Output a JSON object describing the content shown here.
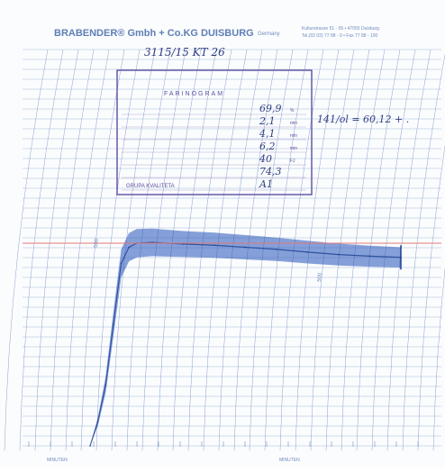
{
  "header": {
    "company": "BRABENDER® Gmbh + Co.KG DUISBURG",
    "country": "Germany",
    "address_line1": "Kulturstrasse 51 - 55  •  47055 Duisburg",
    "address_line2": "Tel.(02 03) 77 88 - 0  •  Fax 77 88 - 100"
  },
  "stamp": {
    "title": "FARINOGRAM",
    "rows": [
      {
        "label": "",
        "value": "69,9",
        "unit": "%"
      },
      {
        "label": "",
        "value": "2,1",
        "unit": "min"
      },
      {
        "label": "",
        "value": "4,1",
        "unit": "min"
      },
      {
        "label": "",
        "value": "6,2",
        "unit": "min"
      },
      {
        "label": "",
        "value": "40",
        "unit": "FJ"
      },
      {
        "label": "",
        "value": "74,3",
        "unit": ""
      },
      {
        "label": "GRUPA KVALITETA",
        "value": "A1",
        "unit": ""
      }
    ]
  },
  "annotations": {
    "sample_id": "3115/15  KT  26",
    "formula": "141/ol = 60,12 + ."
  },
  "scale_labels": [
    "500",
    "500"
  ],
  "axis": {
    "unit_label_left": "MINUTEN",
    "unit_label_right": "MINUTEN"
  },
  "colors": {
    "grid": "#6f8dbd",
    "ink": "#2452b8",
    "reference_line": "#e07a7a",
    "stamp": "#5b4fa0"
  },
  "chart_data": {
    "type": "area",
    "title": "",
    "xlabel": "MINUTEN",
    "ylabel": "",
    "x": [
      0,
      0.5,
      1,
      1.5,
      2,
      2.5,
      3,
      4,
      5,
      6,
      8,
      10,
      12,
      14,
      16,
      18,
      20
    ],
    "y": [
      0,
      60,
      150,
      300,
      450,
      490,
      500,
      502,
      500,
      498,
      495,
      490,
      485,
      478,
      472,
      468,
      465
    ],
    "band_width": [
      0,
      20,
      40,
      60,
      70,
      70,
      70,
      68,
      66,
      64,
      62,
      60,
      58,
      56,
      54,
      52,
      50
    ],
    "ylim": [
      0,
      1000
    ],
    "reference_line": 500
  }
}
